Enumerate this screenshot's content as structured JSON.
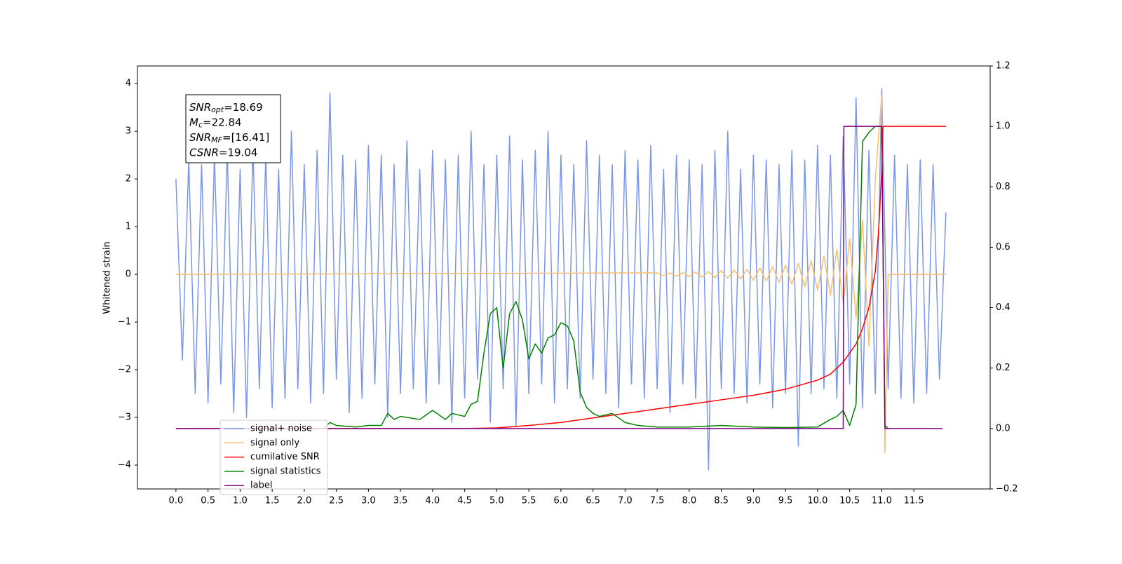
{
  "chart_data": {
    "type": "line",
    "ylabel": "Whitened strain",
    "xlim": [
      -0.6,
      12.69
    ],
    "ylim": [
      -4.5,
      4.37
    ],
    "y2lim": [
      -0.2,
      1.2
    ],
    "xticks": [
      {
        "value": 0,
        "label": "0.0"
      },
      0.5,
      {
        "value": 1,
        "label": "1.0"
      },
      1.5,
      {
        "value": 2,
        "label": "2.0"
      },
      2.5,
      {
        "value": 3,
        "label": "3.0"
      },
      3.5,
      {
        "value": 4,
        "label": "4.0"
      },
      4.5,
      {
        "value": 5,
        "label": "5.0"
      },
      5.5,
      {
        "value": 6,
        "label": "6.0"
      },
      6.5,
      {
        "value": 7,
        "label": "7.0"
      },
      7.5,
      {
        "value": 8,
        "label": "8.0"
      },
      8.5,
      {
        "value": 9,
        "label": "9.0"
      },
      9.5,
      {
        "value": 10,
        "label": "10.0"
      },
      10.5,
      {
        "value": 11,
        "label": "11.0"
      },
      11.5
    ],
    "yticks": [
      {
        "value": -4,
        "label": "−4"
      },
      {
        "value": -3,
        "label": "−3"
      },
      {
        "value": -2,
        "label": "−2"
      },
      {
        "value": -1,
        "label": "−1"
      },
      0,
      1,
      2,
      3,
      4
    ],
    "y2ticks": [
      {
        "value": -0.2,
        "label": "−0.2"
      },
      {
        "value": 0,
        "label": "0.0"
      },
      0.2,
      0.4,
      0.6,
      0.8,
      {
        "value": 1,
        "label": "1.0"
      },
      1.2
    ],
    "grid": false,
    "legend": "lower left",
    "annotations": [
      {
        "text": "SNR",
        "sub": "opt",
        "value": "=18.69"
      },
      {
        "text": "M",
        "sub": "c",
        "value": "=22.84"
      },
      {
        "text": "SNR",
        "sub": "MF",
        "value": "=[16.41]"
      },
      {
        "text": "CSNR",
        "value": "=19.04"
      }
    ],
    "series": [
      {
        "name": "signal+ noise",
        "color": "#7b96e8",
        "axis": "y",
        "x": [
          0,
          0.1,
          0.2,
          0.3,
          0.4,
          0.5,
          0.6,
          0.7,
          0.8,
          0.9,
          1,
          1.1,
          1.2,
          1.3,
          1.4,
          1.5,
          1.6,
          1.7,
          1.8,
          1.9,
          2,
          2.1,
          2.2,
          2.3,
          2.4,
          2.5,
          2.6,
          2.7,
          2.8,
          2.9,
          3,
          3.1,
          3.2,
          3.3,
          3.4,
          3.5,
          3.6,
          3.7,
          3.8,
          3.9,
          4,
          4.1,
          4.2,
          4.3,
          4.4,
          4.5,
          4.6,
          4.7,
          4.8,
          4.9,
          5,
          5.1,
          5.2,
          5.3,
          5.4,
          5.5,
          5.6,
          5.7,
          5.8,
          5.9,
          6,
          6.1,
          6.2,
          6.3,
          6.4,
          6.5,
          6.6,
          6.7,
          6.8,
          6.9,
          7,
          7.1,
          7.2,
          7.3,
          7.4,
          7.5,
          7.6,
          7.7,
          7.8,
          7.9,
          8,
          8.1,
          8.2,
          8.3,
          8.4,
          8.5,
          8.6,
          8.7,
          8.8,
          8.9,
          9,
          9.1,
          9.2,
          9.3,
          9.4,
          9.5,
          9.6,
          9.7,
          9.8,
          9.9,
          10,
          10.1,
          10.2,
          10.3,
          10.4,
          10.5,
          10.6,
          10.7,
          10.8,
          10.9,
          11,
          11.1,
          11.2,
          11.3,
          11.4,
          11.5,
          11.6,
          11.7,
          11.8,
          11.9,
          12
        ],
        "values": [
          2.0,
          -1.8,
          2.4,
          -2.5,
          2.3,
          -2.7,
          2.5,
          -2.3,
          2.6,
          -2.9,
          2.2,
          -3.0,
          2.7,
          -2.4,
          2.5,
          -2.8,
          2.2,
          -2.6,
          3.0,
          -2.4,
          2.3,
          -2.7,
          2.6,
          -2.5,
          3.8,
          -2.2,
          2.5,
          -2.9,
          2.4,
          -2.6,
          2.7,
          -2.3,
          2.5,
          -3.0,
          2.3,
          -2.5,
          2.8,
          -2.4,
          2.2,
          -2.7,
          2.6,
          -2.3,
          2.4,
          -3.1,
          2.5,
          -2.6,
          3.0,
          -2.2,
          2.3,
          -3.1,
          2.5,
          -2.4,
          2.9,
          -3.2,
          2.4,
          -2.5,
          2.6,
          -2.3,
          3.0,
          -2.7,
          2.5,
          -2.4,
          2.3,
          -2.6,
          2.8,
          -2.2,
          2.5,
          -2.5,
          2.3,
          -2.8,
          2.6,
          -2.3,
          2.4,
          -2.6,
          2.7,
          -2.4,
          2.2,
          -2.9,
          2.5,
          -2.3,
          2.4,
          -2.6,
          2.3,
          -4.1,
          2.6,
          -2.4,
          3.0,
          -2.5,
          2.2,
          -2.7,
          2.5,
          -2.3,
          2.4,
          -2.8,
          2.3,
          -2.5,
          2.6,
          -3.6,
          2.4,
          -2.5,
          2.7,
          -2.4,
          2.5,
          -2.6,
          2.9,
          -2.3,
          3.7,
          -2.8,
          2.6,
          -2.5,
          3.9,
          -2.4,
          2.5,
          -2.6,
          2.3,
          -2.7,
          2.4,
          -2.5,
          2.3,
          -2.2,
          1.3
        ]
      },
      {
        "name": "signal only",
        "color": "#f7be6e",
        "axis": "y",
        "x": [
          0,
          7.5,
          7.6,
          7.7,
          7.8,
          7.9,
          8,
          8.1,
          8.2,
          8.3,
          8.4,
          8.5,
          8.6,
          8.7,
          8.8,
          8.9,
          9,
          9.1,
          9.2,
          9.3,
          9.4,
          9.5,
          9.6,
          9.7,
          9.8,
          9.9,
          10,
          10.1,
          10.2,
          10.3,
          10.4,
          10.5,
          10.6,
          10.7,
          10.8,
          10.9,
          11,
          11.05,
          11.1,
          12
        ],
        "values": [
          0,
          0.03,
          -0.03,
          0.03,
          -0.04,
          0.04,
          -0.05,
          0.05,
          -0.06,
          0.06,
          -0.07,
          0.08,
          -0.08,
          0.09,
          -0.1,
          0.11,
          -0.12,
          0.13,
          -0.14,
          0.16,
          -0.17,
          0.19,
          -0.21,
          0.23,
          -0.26,
          0.29,
          -0.33,
          0.38,
          -0.44,
          0.52,
          -0.62,
          0.75,
          -0.92,
          1.15,
          -1.5,
          2.0,
          3.75,
          -3.75,
          0,
          0
        ]
      },
      {
        "name": "cumilative SNR",
        "color": "#ff0000",
        "axis": "y2",
        "x": [
          0,
          4.5,
          5,
          5.5,
          6,
          6.5,
          7,
          7.5,
          8,
          8.5,
          9,
          9.5,
          10,
          10.2,
          10.4,
          10.6,
          10.7,
          10.8,
          10.9,
          10.95,
          11,
          11.02,
          12
        ],
        "values": [
          0,
          0,
          0.002,
          0.01,
          0.02,
          0.035,
          0.05,
          0.065,
          0.08,
          0.095,
          0.11,
          0.13,
          0.16,
          0.18,
          0.22,
          0.28,
          0.33,
          0.4,
          0.52,
          0.65,
          0.85,
          1,
          1
        ]
      },
      {
        "name": "signal statistics",
        "color": "#008000",
        "axis": "y2",
        "x": [
          2.3,
          2.4,
          2.5,
          2.8,
          3,
          3.2,
          3.3,
          3.4,
          3.5,
          3.8,
          4,
          4.2,
          4.3,
          4.5,
          4.6,
          4.7,
          4.8,
          4.9,
          5,
          5.1,
          5.2,
          5.3,
          5.4,
          5.5,
          5.6,
          5.7,
          5.8,
          5.9,
          6,
          6.1,
          6.2,
          6.3,
          6.4,
          6.5,
          6.6,
          6.8,
          7,
          7.2,
          7.5,
          8,
          8.5,
          9,
          9.5,
          10,
          10.2,
          10.3,
          10.4,
          10.5,
          10.6,
          10.7,
          10.8,
          10.9,
          11,
          11.05,
          11.1
        ],
        "values": [
          0,
          0.02,
          0.01,
          0.005,
          0.01,
          0.01,
          0.05,
          0.03,
          0.04,
          0.03,
          0.06,
          0.03,
          0.05,
          0.04,
          0.08,
          0.09,
          0.25,
          0.38,
          0.4,
          0.2,
          0.38,
          0.42,
          0.36,
          0.23,
          0.28,
          0.25,
          0.3,
          0.31,
          0.35,
          0.34,
          0.29,
          0.12,
          0.07,
          0.05,
          0.04,
          0.05,
          0.02,
          0.01,
          0.005,
          0.005,
          0.01,
          0.005,
          0.003,
          0.005,
          0.03,
          0.04,
          0.06,
          0.01,
          0.08,
          0.95,
          0.98,
          1,
          1,
          0.01,
          0
        ]
      },
      {
        "name": "label",
        "color": "#800080",
        "axis": "y2",
        "x": [
          0,
          10.4,
          10.41,
          11,
          11.05,
          11.95
        ],
        "values": [
          0,
          0,
          1,
          1,
          0,
          0
        ]
      }
    ]
  }
}
